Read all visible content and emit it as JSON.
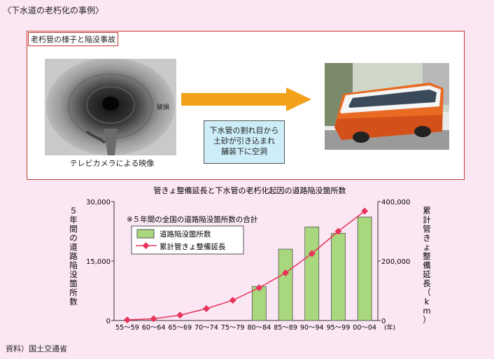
{
  "caption": "〈下水道の老朽化の事例〉",
  "photo_panel": {
    "title": "老朽管の様子と陥没事故",
    "pipe_caption": "テレビカメラによる映像",
    "note_lines": [
      "下水管の割れ目から",
      "土砂が引き込まれ",
      "舗装下に空洞"
    ]
  },
  "source": "資料）国土交通省",
  "colors": {
    "bar": "#a9d77e",
    "line": "#e8335a",
    "arrow": "#f3a11b",
    "note_bg": "#cdeef8"
  },
  "chart_data": {
    "type": "bar",
    "title": "管きょ整備延長と下水管の老朽化起因の道路陥没箇所数",
    "note": "※５年間の全国の道路陥没箇所数の合計",
    "categories": [
      "55～59",
      "60～64",
      "65～69",
      "70～74",
      "75～79",
      "80～84",
      "85～89",
      "90～94",
      "95～99",
      "00～04"
    ],
    "x_unit": "(年)",
    "ylabel_left": "５年間の道路陥没箇所数",
    "ylabel_right": "累計管きょ整備延長（km）",
    "y_left": {
      "lim": [
        0,
        30000
      ],
      "ticks": [
        "0",
        "15,000",
        "30,000"
      ]
    },
    "y_right": {
      "lim": [
        0,
        400000
      ],
      "ticks": [
        "0",
        "200,000",
        "400,000"
      ]
    },
    "legend": "top-left",
    "series": [
      {
        "name": "道路陥没箇所数",
        "type": "bar",
        "axis": "left",
        "values": [
          null,
          null,
          null,
          null,
          null,
          8600,
          18000,
          23600,
          22000,
          26100
        ]
      },
      {
        "name": "累計管きょ整備延長",
        "type": "line",
        "axis": "right",
        "values": [
          2000,
          6000,
          18000,
          40000,
          68000,
          110000,
          160000,
          225000,
          300000,
          368000
        ]
      }
    ]
  }
}
